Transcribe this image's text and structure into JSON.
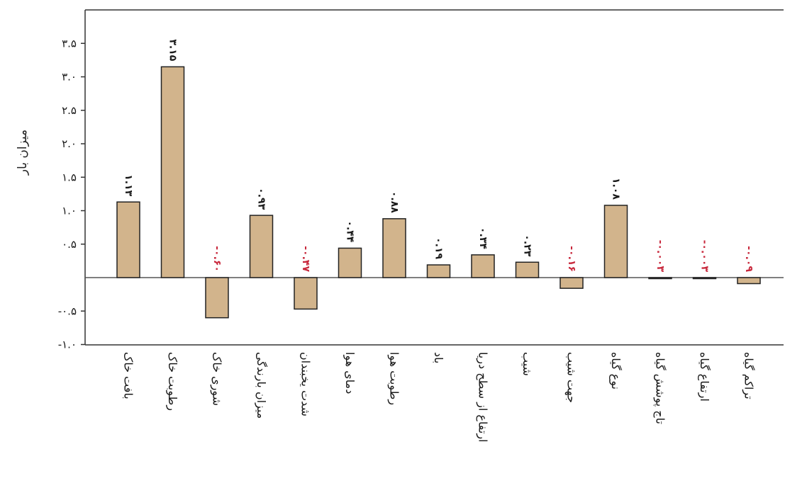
{
  "chart_data": {
    "type": "bar",
    "ylabel": "میزان بار",
    "xlabel": "",
    "ylim": [
      -1.0,
      3.5
    ],
    "yticks": [
      -1.0,
      -0.5,
      0.5,
      1.0,
      1.5,
      2.0,
      2.5,
      3.0,
      3.5
    ],
    "ytick_labels": [
      "-۱.۰",
      "-۰.۵",
      "۰.۵",
      "۱.۰",
      "۱.۵",
      "۲.۰",
      "۲.۵",
      "۳.۰",
      "۳.۵"
    ],
    "categories": [
      "بافت خاک",
      "رطوبت خاک",
      "شوری خاک",
      "میزان بارندگی",
      "شدت یخبندان",
      "دمای هوا",
      "رطوبت هوا",
      "باد",
      "ارتفاع از سطح دریا",
      "شیب",
      "جهت شیب",
      "نوع گیاه",
      "تاج پوشش گیاه",
      "ارتفاع گیاه",
      "تراکم گیاه"
    ],
    "values": [
      1.13,
      3.15,
      -0.6,
      0.93,
      -0.47,
      0.44,
      0.88,
      0.19,
      0.34,
      0.23,
      -0.16,
      1.08,
      -0.003,
      -0.003,
      -0.09
    ],
    "value_labels": [
      "۱.۱۳",
      "۳.۱۵",
      "-۰.۶۰",
      "۰.۹۳",
      "-۰.۴۷",
      "۰.۴۴",
      "۰.۸۸",
      "۰.۱۹",
      "۰.۳۴",
      "۰.۲۳",
      "-۰.۱۶",
      "۱.۰۸",
      "-۰.۰۰۳",
      "-۰.۰۰۳",
      "-۰.۰۹"
    ],
    "grid": false,
    "legend": "none",
    "colors": {
      "bar_fill": "#d2b48c",
      "bar_stroke": "#222222",
      "positive_label": "#1a1a1a",
      "negative_label": "#c8283c",
      "axis": "#333333"
    }
  }
}
